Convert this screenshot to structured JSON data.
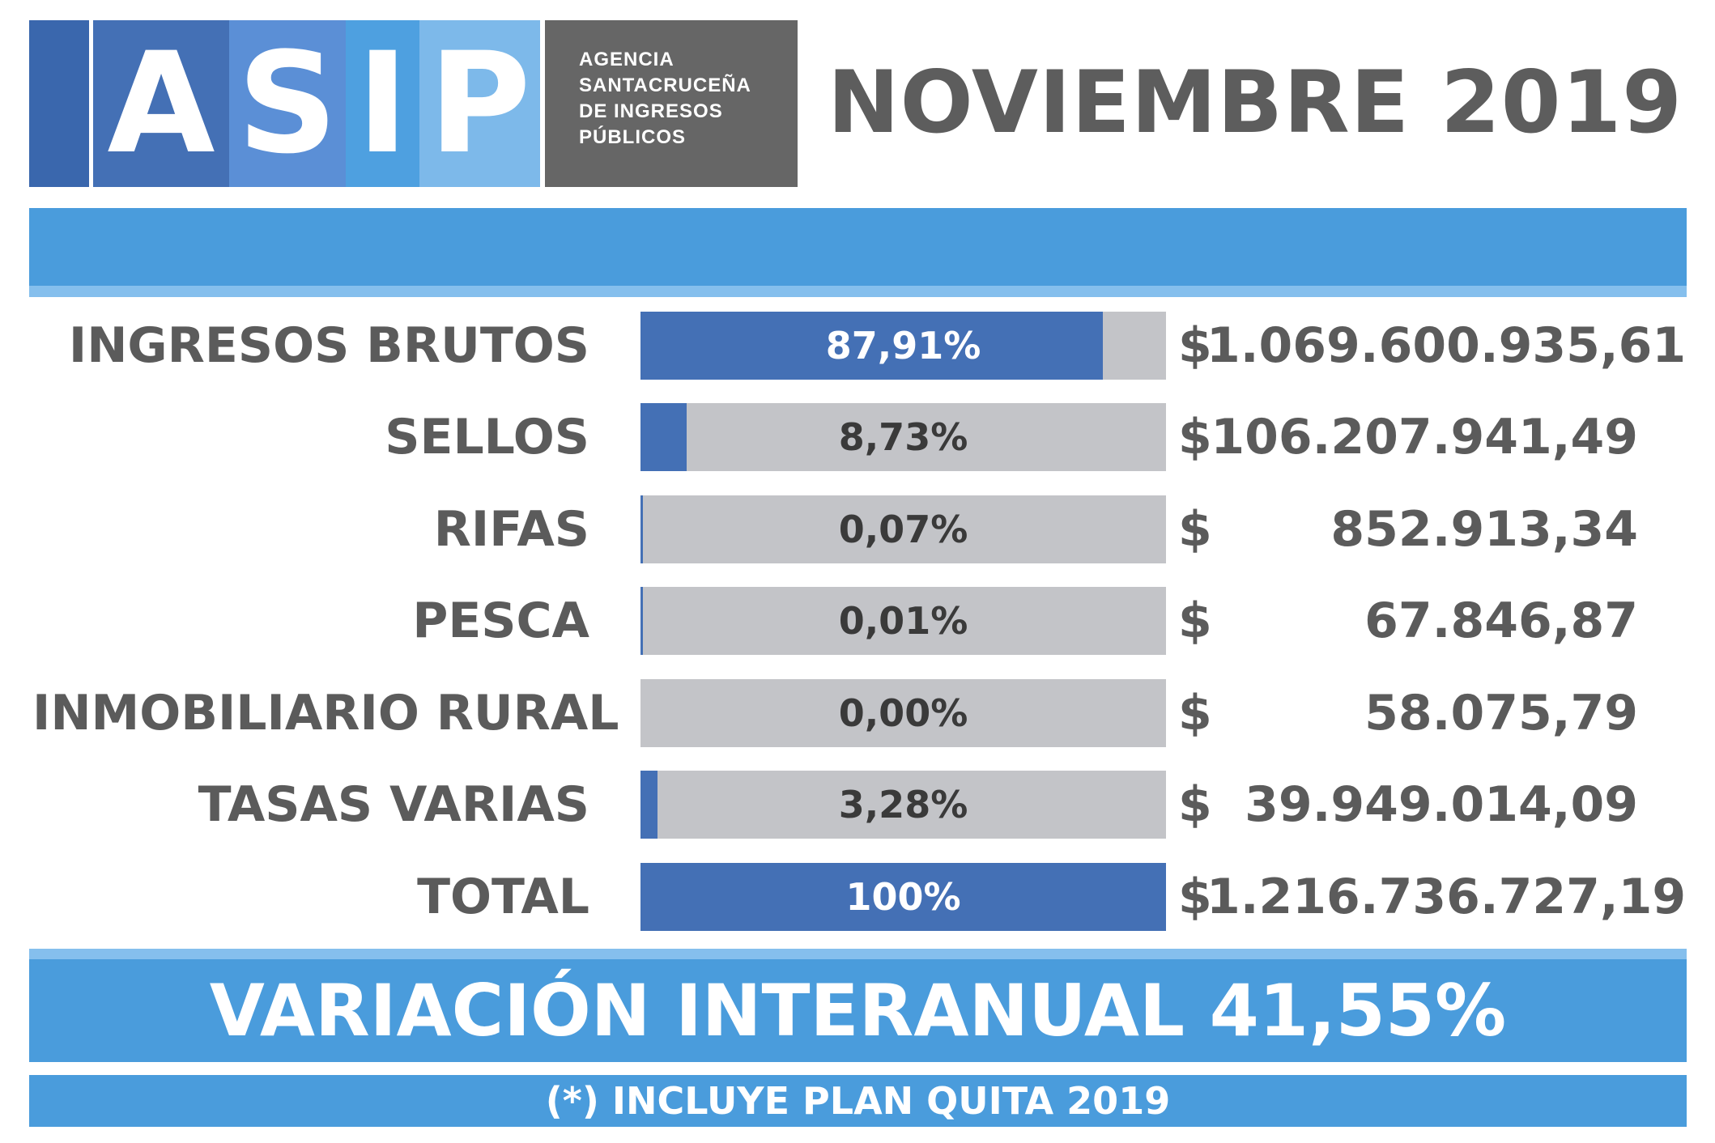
{
  "logo": {
    "letters": [
      "A",
      "S",
      "I",
      "P"
    ],
    "colors": [
      "#4470b5",
      "#5b8fd6",
      "#4ea0e0",
      "#7db9ea"
    ],
    "edge_color": "#3a67ad",
    "agency_lines": [
      "AGENCIA",
      "SANTACRUCEÑA",
      "DE INGRESOS",
      "PÚBLICOS"
    ]
  },
  "header": {
    "title": "NOVIEMBRE 2019"
  },
  "colors": {
    "band": "#4a9cdc",
    "band_stripe": "#85bfed",
    "bar_fill": "#4470b5",
    "bar_track": "#c3c4c8",
    "text_gray": "#5b5b5b"
  },
  "chart_data": {
    "type": "bar",
    "orientation": "horizontal",
    "categories": [
      "INGRESOS BRUTOS",
      "SELLOS",
      "RIFAS",
      "PESCA",
      "INMOBILIARIO RURAL",
      "TASAS VARIAS",
      "TOTAL"
    ],
    "percent_labels": [
      "87,91%",
      "8,73%",
      "0,07%",
      "0,01%",
      "0,00%",
      "3,28%",
      "100%"
    ],
    "values": [
      87.91,
      8.73,
      0.07,
      0.01,
      0.0,
      3.28,
      100
    ],
    "currency": "$",
    "amounts": [
      "1.069.600.935,61",
      "106.207.941,49",
      "852.913,34",
      "67.846,87",
      "58.075,79",
      "39.949.014,09",
      "1.216.736.727,19"
    ],
    "xlim": [
      0,
      100
    ]
  },
  "footer": {
    "variation": "VARIACIÓN INTERANUAL 41,55%",
    "note": "(*) INCLUYE PLAN QUITA 2019"
  }
}
